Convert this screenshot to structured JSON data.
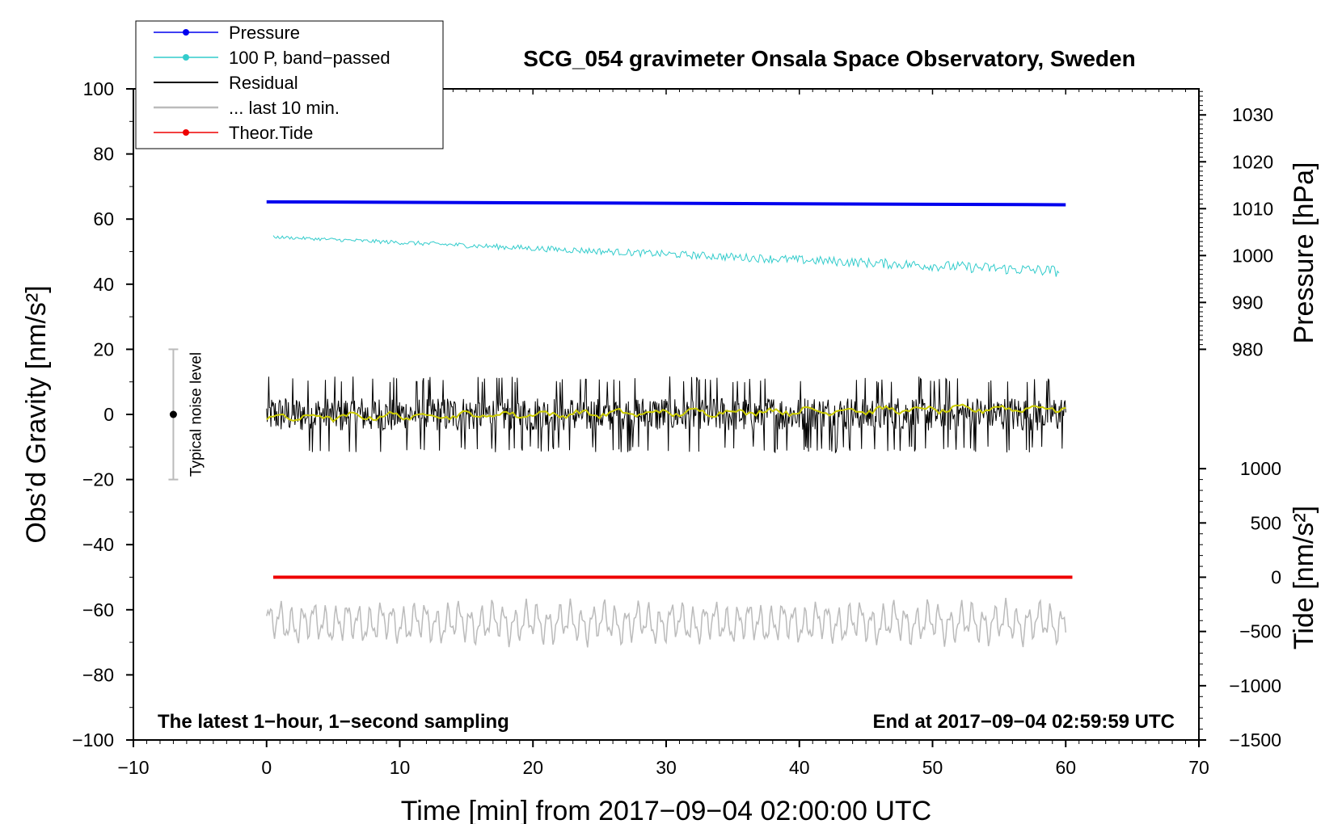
{
  "chart_data": {
    "type": "line",
    "title": "SCG_054 gravimeter Onsala Space Observatory, Sweden",
    "xlabel": "Time [min] from 2017−09−04 02:00:00 UTC",
    "ylabel_left": "Obs’d Gravity [nm/s²]",
    "ylabel_pressure": "Pressure [hPa]",
    "ylabel_tide": "Tide [nm/s²]",
    "xlim": [
      -10,
      70
    ],
    "ylim": [
      -100,
      100
    ],
    "x_ticks": [
      -10,
      0,
      10,
      20,
      30,
      40,
      50,
      60,
      70
    ],
    "x_tick_labels": [
      "−10",
      "0",
      "10",
      "20",
      "30",
      "40",
      "50",
      "60",
      "70"
    ],
    "y_ticks": [
      -100,
      -80,
      -60,
      -40,
      -20,
      0,
      20,
      40,
      60,
      80,
      100
    ],
    "y_tick_labels": [
      "−100",
      "−80",
      "−60",
      "−40",
      "−20",
      "0",
      "20",
      "40",
      "60",
      "80",
      "100"
    ],
    "pressure_axis": {
      "ticks": [
        980,
        990,
        1000,
        1010,
        1020,
        1030
      ],
      "tick_labels": [
        "980",
        "990",
        "1000",
        "1010",
        "1020",
        "1030"
      ],
      "gravity_at_980": 20,
      "gravity_at_1030": 92
    },
    "tide_axis": {
      "ticks": [
        -1500,
        -1000,
        -500,
        0,
        500,
        1000
      ],
      "tick_labels": [
        "−1500",
        "−1000",
        "−500",
        "0",
        "500",
        "1000"
      ],
      "gravity_at_min": -100,
      "gravity_at_zero": -50
    },
    "legend": {
      "position": "top-left",
      "entries": [
        {
          "label": "Pressure",
          "color": "#0000ee",
          "marker": true
        },
        {
          "label": "100 P, band−passed",
          "color": "#33cccc",
          "marker": true
        },
        {
          "label": "Residual",
          "color": "#000000",
          "marker": false
        },
        {
          "label": "... last 10 min.",
          "color": "#bbbbbb",
          "marker": false
        },
        {
          "label": "Theor.Tide",
          "color": "#ee0000",
          "marker": true
        }
      ]
    },
    "series": [
      {
        "name": "Pressure",
        "color": "#0000ee",
        "start": [
          0,
          65.3
        ],
        "end": [
          60,
          64.4
        ]
      },
      {
        "name": "100 P, band−passed",
        "color": "#33cccc",
        "x_range": [
          0.5,
          59.5
        ],
        "trend_start": 54.5,
        "trend_end": 44,
        "noise_amplitude": 2.5
      },
      {
        "name": "Residual",
        "color": "#000000",
        "x_range": [
          0,
          60
        ],
        "center": 0,
        "noise_amplitude": 9
      },
      {
        "name": "Residual smoothed",
        "color": "#cccc00",
        "x_range": [
          0,
          60
        ],
        "start": -1,
        "end": 2
      },
      {
        "name": "... last 10 min.",
        "color": "#bbbbbb",
        "x_range": [
          0,
          60
        ],
        "center": -64,
        "amplitude": 5
      },
      {
        "name": "Theor.Tide",
        "color": "#ee0000",
        "start": [
          0.5,
          -50
        ],
        "end": [
          60.5,
          -50
        ]
      }
    ],
    "noise_bar": {
      "x": -7,
      "center": 0,
      "low": -20,
      "high": 20,
      "label": "Typical noise level"
    },
    "annotations": {
      "bottom_left": "The latest 1−hour, 1−second sampling",
      "bottom_right": "End at 2017−09−04 02:59:59 UTC"
    }
  }
}
